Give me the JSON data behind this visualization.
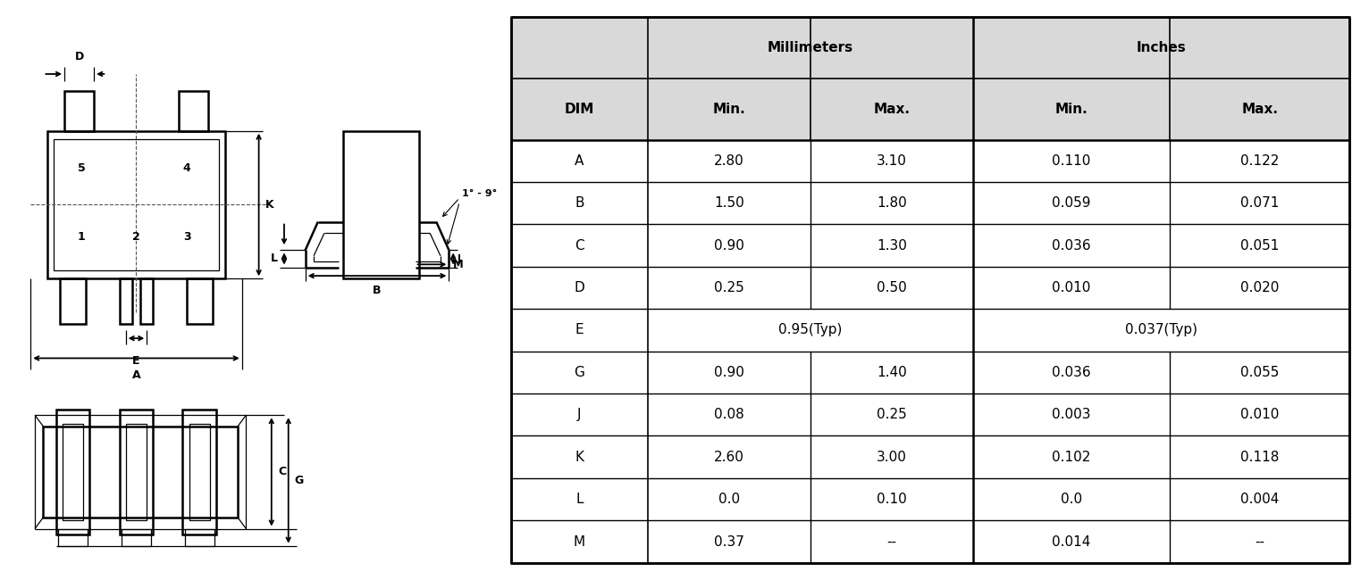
{
  "table_data": [
    [
      "A",
      "2.80",
      "3.10",
      "0.110",
      "0.122"
    ],
    [
      "B",
      "1.50",
      "1.80",
      "0.059",
      "0.071"
    ],
    [
      "C",
      "0.90",
      "1.30",
      "0.036",
      "0.051"
    ],
    [
      "D",
      "0.25",
      "0.50",
      "0.010",
      "0.020"
    ],
    [
      "E",
      "0.95(Typ)",
      "",
      "0.037(Typ)",
      ""
    ],
    [
      "G",
      "0.90",
      "1.40",
      "0.036",
      "0.055"
    ],
    [
      "J",
      "0.08",
      "0.25",
      "0.003",
      "0.010"
    ],
    [
      "K",
      "2.60",
      "3.00",
      "0.102",
      "0.118"
    ],
    [
      "L",
      "0.0",
      "0.10",
      "0.0",
      "0.004"
    ],
    [
      "M",
      "0.37",
      "--",
      "0.014",
      "--"
    ]
  ],
  "bg_color": "#ffffff",
  "header_bg": "#d9d9d9",
  "draw_bg": "#ffffff"
}
